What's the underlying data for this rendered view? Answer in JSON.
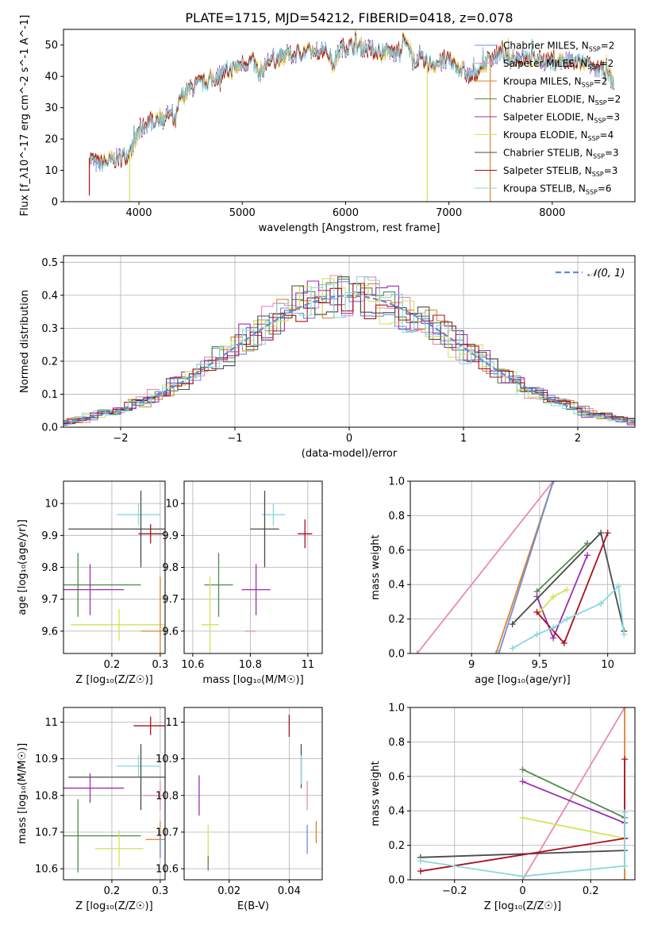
{
  "figure_title": "PLATE=1715, MJD=54212, FIBERID=0418, z=0.078",
  "colors": {
    "Chabrier MILES": "#6f8ed8",
    "Salpeter MILES": "#e889b6",
    "Kroupa MILES": "#d9832f",
    "Chabrier ELODIE": "#4f8a4f",
    "Salpeter ELODIE": "#9b2fb0",
    "Kroupa ELODIE": "#d3e25a",
    "Chabrier STELIB": "#4a4a4a",
    "Salpeter STELIB": "#a8111d",
    "Kroupa STELIB": "#87d8df",
    "gaussian": "#5b8fd9",
    "grid": "#b0b0b0"
  },
  "legend_spectrum": [
    {
      "key": "Chabrier MILES",
      "label": "Chabrier MILES, N",
      "sub": "SSP",
      "suffix": "=2"
    },
    {
      "key": "Salpeter MILES",
      "label": "Salpeter MILES, N",
      "sub": "SSP",
      "suffix": "=2"
    },
    {
      "key": "Kroupa MILES",
      "label": "Kroupa MILES, N",
      "sub": "SSP",
      "suffix": "=2"
    },
    {
      "key": "Chabrier ELODIE",
      "label": "Chabrier ELODIE, N",
      "sub": "SSP",
      "suffix": "=2"
    },
    {
      "key": "Salpeter ELODIE",
      "label": "Salpeter ELODIE, N",
      "sub": "SSP",
      "suffix": "=3"
    },
    {
      "key": "Kroupa ELODIE",
      "label": "Kroupa ELODIE, N",
      "sub": "SSP",
      "suffix": "=4"
    },
    {
      "key": "Chabrier STELIB",
      "label": "Chabrier STELIB, N",
      "sub": "SSP",
      "suffix": "=3"
    },
    {
      "key": "Salpeter STELIB",
      "label": "Salpeter STELIB, N",
      "sub": "SSP",
      "suffix": "=3"
    },
    {
      "key": "Kroupa STELIB",
      "label": "Kroupa STELIB, N",
      "sub": "SSP",
      "suffix": "=6"
    }
  ],
  "chart_data": [
    {
      "type": "line",
      "panel": "spectrum",
      "xlabel": "wavelength [Angstrom, rest frame]",
      "ylabel": "Flux [f_λ10^-17 erg cm^-2 s^-1 A^-1]",
      "xlim": [
        3270,
        8800
      ],
      "ylim": [
        0,
        55
      ],
      "xticks": [
        4000,
        5000,
        6000,
        7000,
        8000
      ],
      "yticks": [
        0,
        10,
        20,
        30,
        40,
        50
      ],
      "spectrum_points": [
        [
          3520,
          14
        ],
        [
          3600,
          12
        ],
        [
          3700,
          13
        ],
        [
          3800,
          14
        ],
        [
          3900,
          15
        ],
        [
          3950,
          18
        ],
        [
          4000,
          22
        ],
        [
          4100,
          26
        ],
        [
          4200,
          27
        ],
        [
          4300,
          28
        ],
        [
          4350,
          25
        ],
        [
          4400,
          33
        ],
        [
          4500,
          36
        ],
        [
          4600,
          38
        ],
        [
          4700,
          39
        ],
        [
          4800,
          41
        ],
        [
          4900,
          42
        ],
        [
          5000,
          44
        ],
        [
          5100,
          45
        ],
        [
          5170,
          41
        ],
        [
          5250,
          45
        ],
        [
          5400,
          46
        ],
        [
          5500,
          47
        ],
        [
          5600,
          48
        ],
        [
          5700,
          48
        ],
        [
          5800,
          49
        ],
        [
          5890,
          44
        ],
        [
          5950,
          49
        ],
        [
          6100,
          50
        ],
        [
          6200,
          49
        ],
        [
          6300,
          48
        ],
        [
          6400,
          48
        ],
        [
          6500,
          47
        ],
        [
          6563,
          52
        ],
        [
          6650,
          46
        ],
        [
          6800,
          44
        ],
        [
          6900,
          44
        ],
        [
          7000,
          45
        ],
        [
          7100,
          43
        ],
        [
          7200,
          40
        ],
        [
          7300,
          42
        ],
        [
          7400,
          46
        ],
        [
          7500,
          47
        ],
        [
          7700,
          46
        ],
        [
          7900,
          45
        ],
        [
          8100,
          45
        ],
        [
          8300,
          44
        ],
        [
          8500,
          42
        ],
        [
          8600,
          38
        ]
      ],
      "spikes": [
        [
          3520,
          2
        ],
        [
          3910,
          0
        ],
        [
          6790,
          0
        ],
        [
          7400,
          0
        ]
      ]
    },
    {
      "type": "bar",
      "panel": "residual_histograms",
      "xlabel": "(data-model)/error",
      "ylabel": "Normed distribution",
      "xlim": [
        -2.5,
        2.5
      ],
      "ylim": [
        0,
        0.52
      ],
      "xticks": [
        -2,
        -1,
        0,
        1,
        2
      ],
      "yticks": [
        0.0,
        0.1,
        0.2,
        0.3,
        0.4,
        0.5
      ],
      "gaussian_label": "𝒩(0, 1)",
      "series_keys": [
        "Chabrier MILES",
        "Salpeter MILES",
        "Kroupa MILES",
        "Chabrier ELODIE",
        "Salpeter ELODIE",
        "Kroupa ELODIE",
        "Chabrier STELIB",
        "Salpeter STELIB",
        "Kroupa STELIB"
      ]
    },
    {
      "type": "scatter",
      "panel": "Z_vs_age",
      "xlabel": "Z [log₁₀(Z/Z☉)]",
      "ylabel": "age  [log₁₀(age/yr)]",
      "xlim": [
        0.1,
        0.31
      ],
      "ylim": [
        9.53,
        10.07
      ],
      "xticks": [
        0.2,
        0.3
      ],
      "yticks": [
        9.6,
        9.7,
        9.8,
        9.9,
        10.0
      ],
      "points": [
        {
          "key": "Kroupa STELIB",
          "x": 0.255,
          "y": 9.965,
          "ex": 0.045,
          "ey": 0.035
        },
        {
          "key": "Chabrier STELIB",
          "x": 0.26,
          "y": 9.92,
          "ex": 0.15,
          "ey": 0.12
        },
        {
          "key": "Salpeter STELIB",
          "x": 0.28,
          "y": 9.905,
          "ex": 0.025,
          "ey": 0.03
        },
        {
          "key": "Chabrier ELODIE",
          "x": 0.13,
          "y": 9.745,
          "ex": 0.13,
          "ey": 0.1
        },
        {
          "key": "Salpeter ELODIE",
          "x": 0.155,
          "y": 9.73,
          "ex": 0.07,
          "ey": 0.08
        },
        {
          "key": "Kroupa ELODIE",
          "x": 0.215,
          "y": 9.62,
          "ex": 0.1,
          "ey": 0.05
        },
        {
          "key": "Kroupa MILES",
          "x": 0.3,
          "y": 9.6,
          "ex": 0.04,
          "ey": 0.17
        },
        {
          "key": "Chabrier MILES",
          "x": 0.3,
          "y": 9.6,
          "ex": 0.0,
          "ey": 0.0
        },
        {
          "key": "Salpeter MILES",
          "x": 0.3,
          "y": 9.6,
          "ex": 0.0,
          "ey": 0.0
        }
      ]
    },
    {
      "type": "scatter",
      "panel": "mass_vs_age",
      "xlabel": "mass [log₁₀(M/M☉)]",
      "ylabel": "",
      "xlim": [
        10.57,
        11.05
      ],
      "ylim": [
        9.53,
        10.07
      ],
      "xticks": [
        10.6,
        10.8,
        11.0
      ],
      "yticks": [
        9.6,
        9.7,
        9.8,
        9.9,
        10.0
      ],
      "points": [
        {
          "key": "Kroupa STELIB",
          "x": 10.88,
          "y": 9.965,
          "ex": 0.04,
          "ey": 0.035
        },
        {
          "key": "Chabrier STELIB",
          "x": 10.85,
          "y": 9.92,
          "ex": 0.05,
          "ey": 0.12
        },
        {
          "key": "Salpeter STELIB",
          "x": 10.99,
          "y": 9.905,
          "ex": 0.025,
          "ey": 0.045
        },
        {
          "key": "Chabrier ELODIE",
          "x": 10.69,
          "y": 9.745,
          "ex": 0.05,
          "ey": 0.1
        },
        {
          "key": "Salpeter ELODIE",
          "x": 10.82,
          "y": 9.73,
          "ex": 0.05,
          "ey": 0.08
        },
        {
          "key": "Kroupa ELODIE",
          "x": 10.66,
          "y": 9.62,
          "ex": 0.03,
          "ey": 0.15
        },
        {
          "key": "Salpeter MILES",
          "x": 10.8,
          "y": 9.6,
          "ex": 0.02,
          "ey": 0.0
        }
      ]
    },
    {
      "type": "line",
      "panel": "age_weights",
      "xlabel": "age  [log₁₀(age/yr)]",
      "ylabel": "mass weight",
      "xlim": [
        8.55,
        10.2
      ],
      "ylim": [
        0,
        1.0
      ],
      "xticks": [
        9.0,
        9.5,
        10.0
      ],
      "yticks": [
        0.0,
        0.2,
        0.4,
        0.6,
        0.8,
        1.0
      ],
      "series": [
        {
          "key": "Salpeter MILES",
          "x": [
            8.6,
            9.6
          ],
          "y": [
            0.0,
            1.0
          ]
        },
        {
          "key": "Kroupa MILES",
          "x": [
            9.18,
            9.6
          ],
          "y": [
            0.0,
            1.0
          ]
        },
        {
          "key": "Chabrier MILES",
          "x": [
            9.2,
            9.6
          ],
          "y": [
            0.0,
            1.0
          ]
        },
        {
          "key": "Chabrier ELODIE",
          "x": [
            9.48,
            9.85
          ],
          "y": [
            0.36,
            0.64
          ]
        },
        {
          "key": "Salpeter ELODIE",
          "x": [
            9.48,
            9.6,
            9.85
          ],
          "y": [
            0.33,
            0.09,
            0.57
          ]
        },
        {
          "key": "Kroupa ELODIE",
          "x": [
            9.5,
            9.6,
            9.7
          ],
          "y": [
            0.24,
            0.33,
            0.37
          ]
        },
        {
          "key": "Chabrier STELIB",
          "x": [
            9.3,
            9.95,
            10.12
          ],
          "y": [
            0.17,
            0.7,
            0.13
          ]
        },
        {
          "key": "Salpeter STELIB",
          "x": [
            9.48,
            9.68,
            10.0
          ],
          "y": [
            0.24,
            0.06,
            0.7
          ]
        },
        {
          "key": "Kroupa STELIB",
          "x": [
            9.3,
            9.48,
            9.6,
            9.7,
            9.95,
            10.08,
            10.12
          ],
          "y": [
            0.03,
            0.11,
            0.15,
            0.2,
            0.29,
            0.39,
            0.11
          ]
        }
      ]
    },
    {
      "type": "scatter",
      "panel": "Z_vs_mass",
      "xlabel": "Z [log₁₀(Z/Z☉)]",
      "ylabel": "mass [log₁₀(M/M☉)]",
      "xlim": [
        0.1,
        0.31
      ],
      "ylim": [
        10.57,
        11.04
      ],
      "xticks": [
        0.2,
        0.3
      ],
      "yticks": [
        10.6,
        10.7,
        10.8,
        10.9,
        11.0
      ],
      "points": [
        {
          "key": "Salpeter STELIB",
          "x": 0.28,
          "y": 10.99,
          "ex": 0.035,
          "ey": 0.025
        },
        {
          "key": "Kroupa STELIB",
          "x": 0.255,
          "y": 10.88,
          "ex": 0.045,
          "ey": 0.03
        },
        {
          "key": "Chabrier STELIB",
          "x": 0.26,
          "y": 10.85,
          "ex": 0.15,
          "ey": 0.09
        },
        {
          "key": "Salpeter ELODIE",
          "x": 0.155,
          "y": 10.82,
          "ex": 0.07,
          "ey": 0.04
        },
        {
          "key": "Salpeter MILES",
          "x": 0.3,
          "y": 10.8,
          "ex": 0.035,
          "ey": 0.04
        },
        {
          "key": "Chabrier ELODIE",
          "x": 0.13,
          "y": 10.69,
          "ex": 0.13,
          "ey": 0.1
        },
        {
          "key": "Kroupa MILES",
          "x": 0.3,
          "y": 10.68,
          "ex": 0.03,
          "ey": 0.05
        },
        {
          "key": "Chabrier MILES",
          "x": 0.3,
          "y": 10.66,
          "ex": 0.0,
          "ey": 0.03
        },
        {
          "key": "Kroupa ELODIE",
          "x": 0.215,
          "y": 10.655,
          "ex": 0.05,
          "ey": 0.05
        }
      ]
    },
    {
      "type": "scatter",
      "panel": "EBV_vs_mass",
      "xlabel": "E(B-V)",
      "ylabel": "",
      "xlim": [
        0.005,
        0.051
      ],
      "ylim": [
        10.57,
        11.04
      ],
      "xticks": [
        0.02,
        0.04
      ],
      "yticks": [
        10.6,
        10.7,
        10.8,
        10.9,
        11.0
      ],
      "points": [
        {
          "key": "Salpeter STELIB",
          "x": 0.04,
          "y": 10.99,
          "ex": 0.0,
          "ey": 0.03
        },
        {
          "key": "Chabrier STELIB",
          "x": 0.044,
          "y": 10.88,
          "ex": 0.0,
          "ey": 0.06
        },
        {
          "key": "Kroupa STELIB",
          "x": 0.044,
          "y": 10.87,
          "ex": 0.0,
          "ey": 0.04
        },
        {
          "key": "Salpeter ELODIE",
          "x": 0.01,
          "y": 10.8,
          "ex": 0.0,
          "ey": 0.055
        },
        {
          "key": "Salpeter MILES",
          "x": 0.046,
          "y": 10.8,
          "ex": 0.0,
          "ey": 0.04
        },
        {
          "key": "Chabrier MILES",
          "x": 0.046,
          "y": 10.68,
          "ex": 0.0,
          "ey": 0.04
        },
        {
          "key": "Kroupa MILES",
          "x": 0.049,
          "y": 10.7,
          "ex": 0.0,
          "ey": 0.03
        },
        {
          "key": "Kroupa ELODIE",
          "x": 0.013,
          "y": 10.67,
          "ex": 0.0,
          "ey": 0.05
        },
        {
          "key": "Chabrier ELODIE",
          "x": 0.013,
          "y": 10.615,
          "ex": 0.0,
          "ey": 0.02
        }
      ]
    },
    {
      "type": "line",
      "panel": "Z_weights",
      "xlabel": "Z [log₁₀(Z/Z☉)]",
      "ylabel": "mass weight",
      "xlim": [
        -0.33,
        0.33
      ],
      "ylim": [
        0,
        1.0
      ],
      "xticks": [
        -0.2,
        0.0,
        0.2
      ],
      "yticks": [
        0.0,
        0.2,
        0.4,
        0.6,
        0.8,
        1.0
      ],
      "series": [
        {
          "key": "Salpeter MILES",
          "x": [
            0.0,
            0.3
          ],
          "y": [
            0.0,
            1.0
          ]
        },
        {
          "key": "Kroupa MILES",
          "x": [
            0.3,
            0.3
          ],
          "y": [
            0.0,
            1.0
          ]
        },
        {
          "key": "Chabrier ELODIE",
          "x": [
            0.0,
            0.3
          ],
          "y": [
            0.64,
            0.36
          ]
        },
        {
          "key": "Salpeter ELODIE",
          "x": [
            0.0,
            0.3
          ],
          "y": [
            0.57,
            0.33
          ]
        },
        {
          "key": "Kroupa ELODIE",
          "x": [
            0.0,
            0.3
          ],
          "y": [
            0.36,
            0.24
          ]
        },
        {
          "key": "Chabrier STELIB",
          "x": [
            -0.3,
            0.3
          ],
          "y": [
            0.13,
            0.17
          ]
        },
        {
          "key": "Salpeter STELIB",
          "x": [
            -0.3,
            0.3
          ],
          "y": [
            0.05,
            0.24
          ]
        },
        {
          "key": "Salpeter STELIB",
          "x": [
            0.3,
            0.3
          ],
          "y": [
            0.24,
            0.7
          ]
        },
        {
          "key": "Kroupa STELIB",
          "x": [
            -0.3,
            0.0,
            0.3
          ],
          "y": [
            0.11,
            0.02,
            0.08
          ]
        },
        {
          "key": "Kroupa STELIB",
          "x": [
            0.3,
            0.3
          ],
          "y": [
            0.08,
            0.39
          ]
        }
      ]
    }
  ]
}
